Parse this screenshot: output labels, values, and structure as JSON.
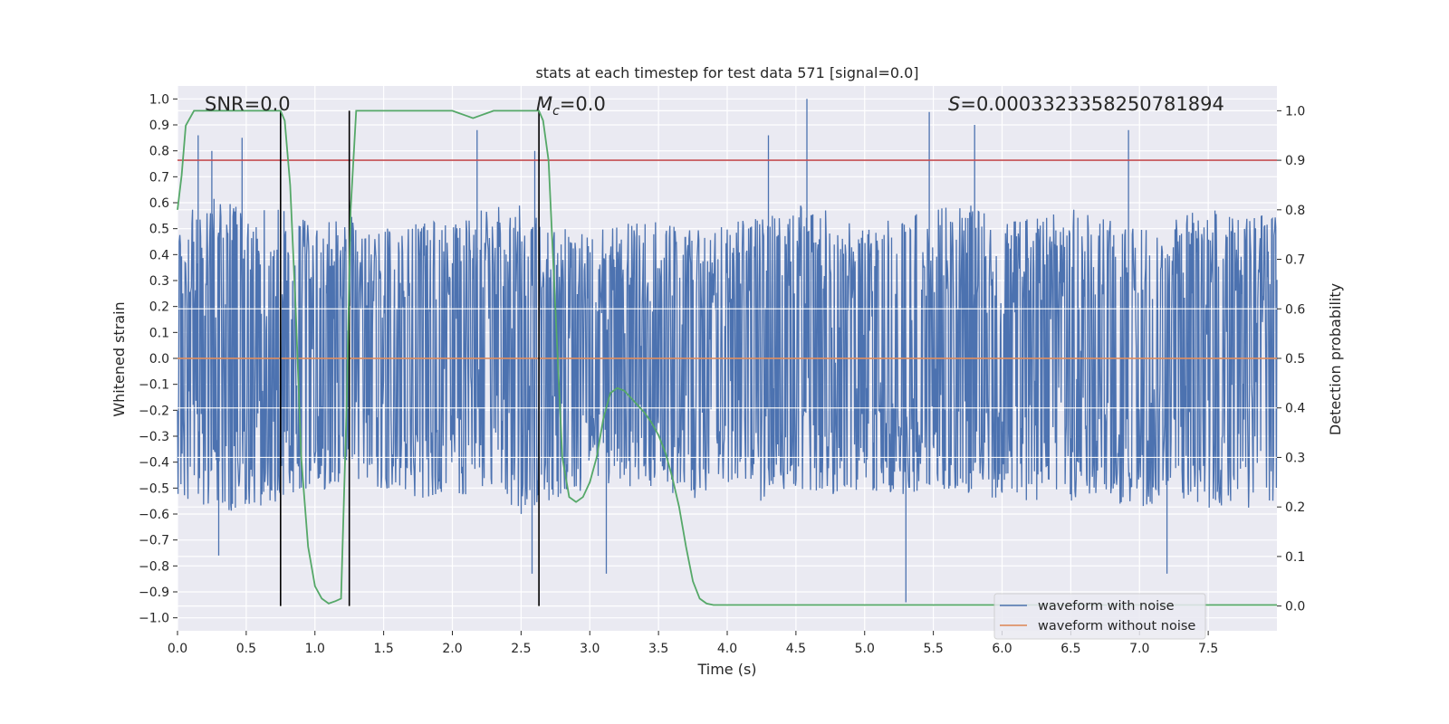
{
  "chart_data": {
    "type": "line",
    "title": "stats at each timestep for test data 571 [signal=0.0]",
    "xlabel": "Time (s)",
    "ylabel_left": "Whitened strain",
    "ylabel_right": "Detection probability",
    "xlim": [
      0.0,
      8.0
    ],
    "ylim_left": [
      -1.05,
      1.05
    ],
    "ylim_right": [
      -0.05,
      1.05
    ],
    "x_ticks": [
      "0.0",
      "0.5",
      "1.0",
      "1.5",
      "2.0",
      "2.5",
      "3.0",
      "3.5",
      "4.0",
      "4.5",
      "5.0",
      "5.5",
      "6.0",
      "6.5",
      "7.0",
      "7.5"
    ],
    "y_ticks_left": [
      "1.0",
      "0.9",
      "0.8",
      "0.7",
      "0.6",
      "0.5",
      "0.4",
      "0.3",
      "0.2",
      "0.1",
      "0.0",
      "−0.1",
      "−0.2",
      "−0.3",
      "−0.4",
      "−0.5",
      "−0.6",
      "−0.7",
      "−0.8",
      "−0.9",
      "−1.0"
    ],
    "y_ticks_right": [
      "1.0",
      "0.9",
      "0.8",
      "0.7",
      "0.6",
      "0.5",
      "0.4",
      "0.3",
      "0.2",
      "0.1",
      "0.0"
    ],
    "annotations": {
      "snr": "SNR=0.0",
      "mc_sym": "M",
      "mc_sub": "c",
      "mc_val": "=0.0",
      "s_sym": "S",
      "s_val": "=0.0003323358250781894"
    },
    "threshold_line": {
      "axis": "right",
      "value": 0.9,
      "color": "#c44e52"
    },
    "vertical_markers": [
      0.75,
      1.25,
      2.63
    ],
    "series": [
      {
        "name": "waveform with noise",
        "color": "#4c72b0",
        "axis": "left",
        "envelope_x": [
          0,
          0.25,
          0.5,
          0.75,
          1,
          1.25,
          1.5,
          1.75,
          2,
          2.25,
          2.5,
          2.75,
          3,
          3.25,
          3.5,
          3.75,
          4,
          4.25,
          4.5,
          4.75,
          5,
          5.25,
          5.5,
          5.75,
          6,
          6.25,
          6.5,
          6.75,
          7,
          7.25,
          7.5,
          7.75,
          8
        ],
        "envelope_upper": [
          0.55,
          0.62,
          0.58,
          0.6,
          0.52,
          0.55,
          0.5,
          0.52,
          0.55,
          0.58,
          0.6,
          0.5,
          0.5,
          0.52,
          0.55,
          0.5,
          0.52,
          0.55,
          0.6,
          0.58,
          0.5,
          0.55,
          0.58,
          0.6,
          0.52,
          0.55,
          0.58,
          0.55,
          0.52,
          0.55,
          0.58,
          0.55,
          0.55
        ],
        "envelope_lower": [
          -0.55,
          -0.6,
          -0.58,
          -0.55,
          -0.5,
          -0.52,
          -0.5,
          -0.55,
          -0.52,
          -0.55,
          -0.6,
          -0.55,
          -0.5,
          -0.5,
          -0.52,
          -0.55,
          -0.5,
          -0.55,
          -0.5,
          -0.55,
          -0.5,
          -0.55,
          -0.5,
          -0.52,
          -0.55,
          -0.58,
          -0.55,
          -0.55,
          -0.58,
          -0.55,
          -0.58,
          -0.6,
          -0.55
        ],
        "spikes": [
          [
            0.15,
            0.86
          ],
          [
            0.25,
            0.8
          ],
          [
            0.3,
            -0.76
          ],
          [
            0.47,
            0.85
          ],
          [
            1.25,
            0.85
          ],
          [
            2.18,
            0.88
          ],
          [
            2.58,
            -0.83
          ],
          [
            2.6,
            0.8
          ],
          [
            3.12,
            -0.83
          ],
          [
            4.3,
            0.86
          ],
          [
            4.58,
            1.0
          ],
          [
            5.3,
            -0.94
          ],
          [
            5.47,
            0.95
          ],
          [
            5.8,
            0.9
          ],
          [
            6.92,
            0.88
          ],
          [
            7.2,
            -0.83
          ]
        ]
      },
      {
        "name": "waveform without noise",
        "color": "#dd8452",
        "axis": "left",
        "x": [
          0.0,
          8.0
        ],
        "y": [
          0.0,
          0.0
        ]
      },
      {
        "name": "detection probability",
        "color": "#55a868",
        "axis": "right",
        "x": [
          0.0,
          0.03,
          0.06,
          0.12,
          0.25,
          0.5,
          0.7,
          0.75,
          0.78,
          0.82,
          0.86,
          0.9,
          0.95,
          1.0,
          1.05,
          1.1,
          1.15,
          1.19,
          1.23,
          1.26,
          1.3,
          1.33,
          1.4,
          1.6,
          1.8,
          2.0,
          2.05,
          2.1,
          2.15,
          2.2,
          2.25,
          2.3,
          2.5,
          2.6,
          2.63,
          2.66,
          2.7,
          2.75,
          2.8,
          2.85,
          2.9,
          2.95,
          3.0,
          3.05,
          3.1,
          3.15,
          3.2,
          3.25,
          3.3,
          3.35,
          3.4,
          3.45,
          3.5,
          3.55,
          3.6,
          3.65,
          3.7,
          3.75,
          3.8,
          3.85,
          3.9,
          4.0,
          5.0,
          6.0,
          7.0,
          8.0
        ],
        "y": [
          0.8,
          0.87,
          0.97,
          1.0,
          1.0,
          1.0,
          1.0,
          1.0,
          0.98,
          0.85,
          0.6,
          0.3,
          0.12,
          0.04,
          0.015,
          0.005,
          0.01,
          0.015,
          0.4,
          0.8,
          1.0,
          1.0,
          1.0,
          1.0,
          1.0,
          1.0,
          0.995,
          0.99,
          0.985,
          0.99,
          0.995,
          1.0,
          1.0,
          1.0,
          1.0,
          0.98,
          0.9,
          0.6,
          0.3,
          0.22,
          0.21,
          0.22,
          0.25,
          0.3,
          0.38,
          0.43,
          0.44,
          0.435,
          0.42,
          0.405,
          0.39,
          0.37,
          0.345,
          0.31,
          0.26,
          0.2,
          0.12,
          0.05,
          0.015,
          0.005,
          0.002,
          0.002,
          0.002,
          0.002,
          0.002,
          0.002
        ]
      }
    ],
    "legend": {
      "placement": "lower-right",
      "entries": [
        {
          "label": "waveform with noise",
          "color": "#4c72b0"
        },
        {
          "label": "waveform without noise",
          "color": "#dd8452"
        }
      ]
    }
  }
}
